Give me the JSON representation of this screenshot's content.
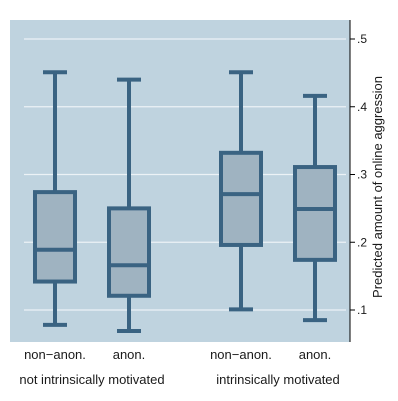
{
  "chart_data": {
    "type": "box",
    "ylabel": "Predicted amount of online aggression",
    "ylim": [
      0.05,
      0.52
    ],
    "y_ticks": [
      0.1,
      0.2,
      0.3,
      0.4,
      0.5
    ],
    "y_tick_labels": [
      ".1",
      ".2",
      ".3",
      ".4",
      ".5"
    ],
    "y_axis_position": "right",
    "grid": true,
    "groups": [
      {
        "label": "not intrinsically motivated",
        "categories": [
          "non−anon.",
          "anon."
        ]
      },
      {
        "label": "intrinsically motivated",
        "categories": [
          "non−anon.",
          "anon."
        ]
      }
    ],
    "boxes": [
      {
        "group": "not intrinsically motivated",
        "category": "non−anon.",
        "min": 0.078,
        "q1": 0.142,
        "median": 0.189,
        "q3": 0.274,
        "max": 0.451
      },
      {
        "group": "not intrinsically motivated",
        "category": "anon.",
        "min": 0.069,
        "q1": 0.121,
        "median": 0.166,
        "q3": 0.25,
        "max": 0.44
      },
      {
        "group": "intrinsically motivated",
        "category": "non−anon.",
        "min": 0.101,
        "q1": 0.196,
        "median": 0.271,
        "q3": 0.332,
        "max": 0.451
      },
      {
        "group": "intrinsically motivated",
        "category": "anon.",
        "min": 0.085,
        "q1": 0.174,
        "median": 0.249,
        "q3": 0.311,
        "max": 0.416
      }
    ],
    "colors": {
      "plot_background": "#bfd3df",
      "box_fill": "#9fb3c1",
      "box_stroke": "#3a6382",
      "grid": "#ecf2f6",
      "axis": "#000000"
    }
  }
}
